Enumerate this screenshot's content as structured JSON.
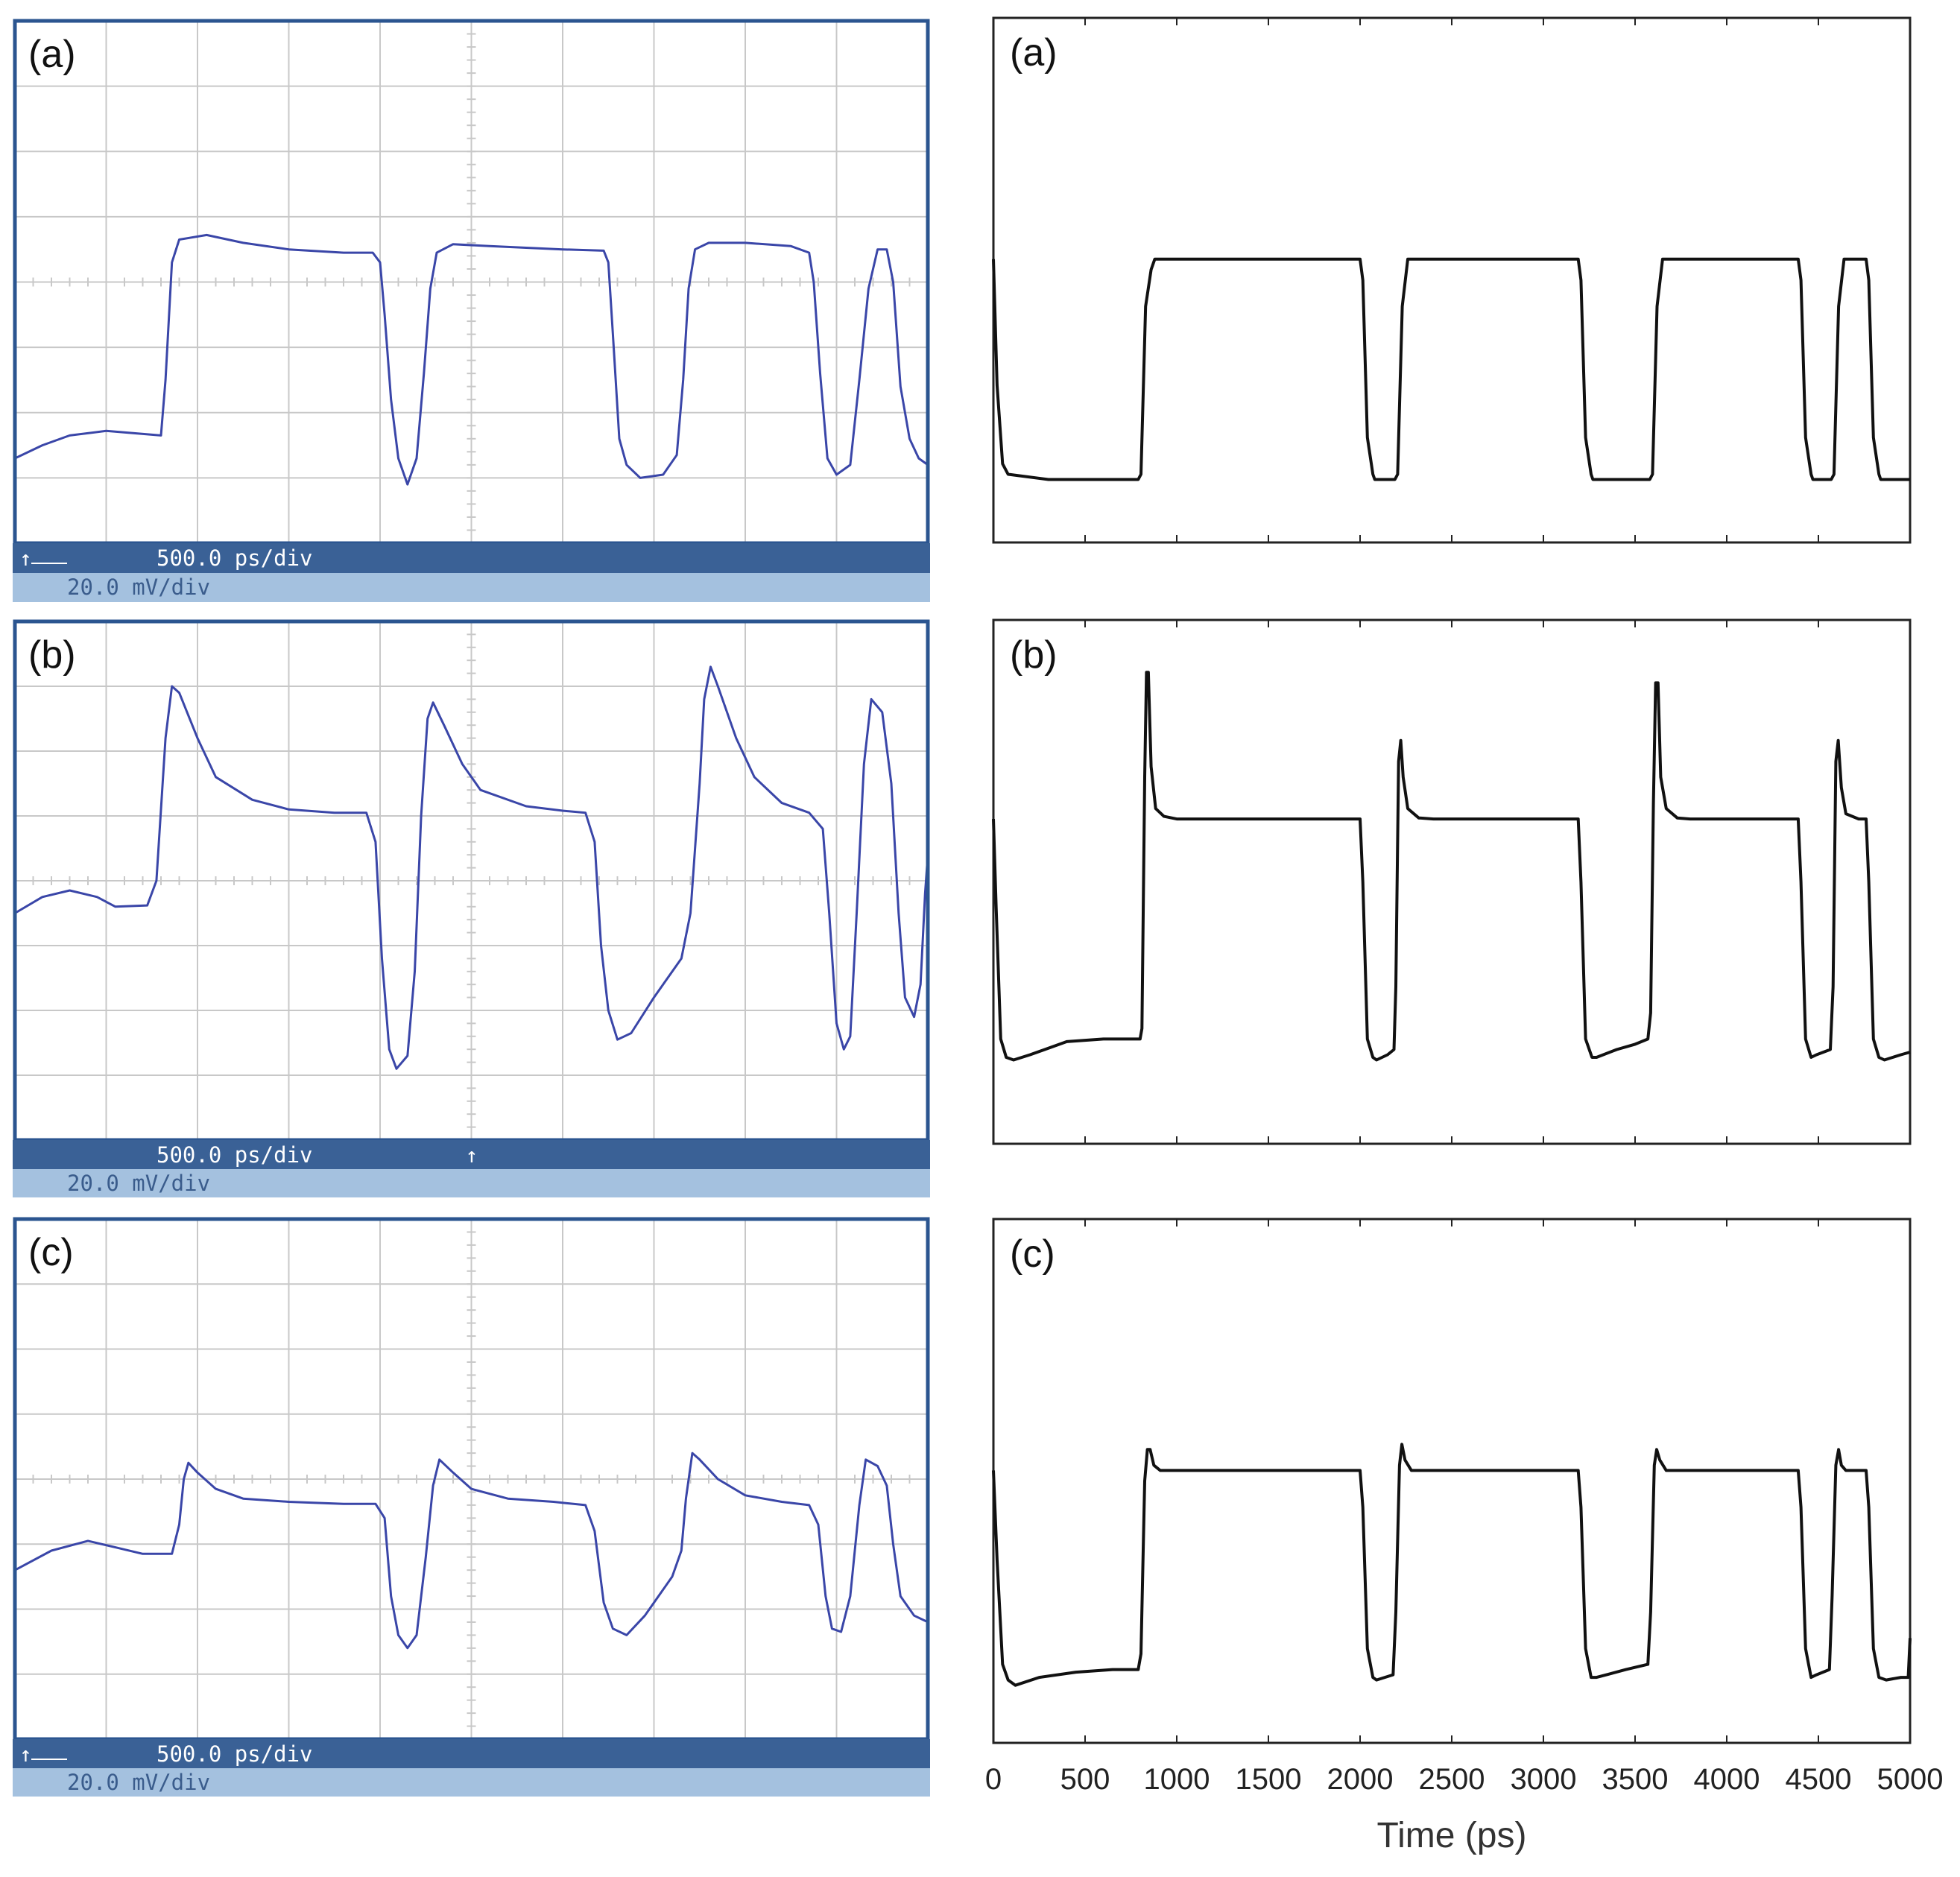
{
  "colors": {
    "scope_trace": "#3a46a8",
    "scope_border": "#2b5590",
    "scope_grid": "#c8c8c8",
    "scope_bar_dark": "#3a6196",
    "scope_bar_light": "#a4c1df",
    "scope_bar_text_dark": "#ffffff",
    "scope_bar_text_light": "#3a5c8c",
    "sim_trace": "#111111",
    "frame": "#222222"
  },
  "chart_data": [
    {
      "id": "scope-a",
      "kind": "oscilloscope",
      "type": "line",
      "label": "(a)",
      "time_scale_label": "500.0 ps/div",
      "volt_scale_label": "20.0 mV/div",
      "marker_left": "↑",
      "marker_center": "",
      "x_divisions": 10,
      "y_divisions": 8,
      "xlim": [
        0,
        10
      ],
      "ylim": [
        0,
        8
      ],
      "grid": true,
      "points": [
        [
          0,
          1.3
        ],
        [
          0.3,
          1.5
        ],
        [
          0.6,
          1.65
        ],
        [
          1.0,
          1.72
        ],
        [
          1.6,
          1.65
        ],
        [
          1.65,
          2.5
        ],
        [
          1.72,
          4.3
        ],
        [
          1.8,
          4.65
        ],
        [
          2.1,
          4.72
        ],
        [
          2.5,
          4.6
        ],
        [
          3.0,
          4.5
        ],
        [
          3.6,
          4.45
        ],
        [
          3.92,
          4.45
        ],
        [
          4.0,
          4.3
        ],
        [
          4.05,
          3.5
        ],
        [
          4.12,
          2.2
        ],
        [
          4.2,
          1.3
        ],
        [
          4.3,
          0.9
        ],
        [
          4.4,
          1.3
        ],
        [
          4.48,
          2.6
        ],
        [
          4.55,
          3.9
        ],
        [
          4.62,
          4.45
        ],
        [
          4.8,
          4.58
        ],
        [
          5.2,
          4.55
        ],
        [
          6.0,
          4.5
        ],
        [
          6.45,
          4.48
        ],
        [
          6.5,
          4.3
        ],
        [
          6.55,
          3.2
        ],
        [
          6.62,
          1.6
        ],
        [
          6.7,
          1.2
        ],
        [
          6.85,
          1.0
        ],
        [
          7.1,
          1.05
        ],
        [
          7.25,
          1.35
        ],
        [
          7.32,
          2.5
        ],
        [
          7.38,
          3.9
        ],
        [
          7.45,
          4.5
        ],
        [
          7.6,
          4.6
        ],
        [
          8.0,
          4.6
        ],
        [
          8.5,
          4.55
        ],
        [
          8.7,
          4.45
        ],
        [
          8.75,
          4.0
        ],
        [
          8.82,
          2.6
        ],
        [
          8.9,
          1.3
        ],
        [
          9.0,
          1.05
        ],
        [
          9.15,
          1.2
        ],
        [
          9.25,
          2.5
        ],
        [
          9.35,
          3.9
        ],
        [
          9.45,
          4.5
        ],
        [
          9.55,
          4.5
        ],
        [
          9.62,
          4.0
        ],
        [
          9.7,
          2.4
        ],
        [
          9.8,
          1.6
        ],
        [
          9.9,
          1.3
        ],
        [
          10.0,
          1.2
        ]
      ]
    },
    {
      "id": "scope-b",
      "kind": "oscilloscope",
      "type": "line",
      "label": "(b)",
      "time_scale_label": "500.0 ps/div",
      "volt_scale_label": "20.0 mV/div",
      "marker_left": "",
      "marker_center": "↑",
      "x_divisions": 10,
      "y_divisions": 8,
      "xlim": [
        0,
        10
      ],
      "ylim": [
        0,
        8
      ],
      "grid": true,
      "points": [
        [
          0,
          3.5
        ],
        [
          0.3,
          3.75
        ],
        [
          0.6,
          3.85
        ],
        [
          0.9,
          3.75
        ],
        [
          1.1,
          3.6
        ],
        [
          1.45,
          3.62
        ],
        [
          1.55,
          4.0
        ],
        [
          1.65,
          6.2
        ],
        [
          1.72,
          7.0
        ],
        [
          1.8,
          6.9
        ],
        [
          2.0,
          6.2
        ],
        [
          2.2,
          5.6
        ],
        [
          2.6,
          5.25
        ],
        [
          3.0,
          5.1
        ],
        [
          3.5,
          5.05
        ],
        [
          3.85,
          5.05
        ],
        [
          3.95,
          4.6
        ],
        [
          4.02,
          2.8
        ],
        [
          4.1,
          1.4
        ],
        [
          4.18,
          1.1
        ],
        [
          4.3,
          1.3
        ],
        [
          4.38,
          2.6
        ],
        [
          4.45,
          5.0
        ],
        [
          4.52,
          6.5
        ],
        [
          4.58,
          6.75
        ],
        [
          4.7,
          6.4
        ],
        [
          4.9,
          5.8
        ],
        [
          5.1,
          5.4
        ],
        [
          5.6,
          5.15
        ],
        [
          6.0,
          5.08
        ],
        [
          6.25,
          5.05
        ],
        [
          6.35,
          4.6
        ],
        [
          6.42,
          3.0
        ],
        [
          6.5,
          2.0
        ],
        [
          6.6,
          1.55
        ],
        [
          6.75,
          1.65
        ],
        [
          7.0,
          2.2
        ],
        [
          7.3,
          2.8
        ],
        [
          7.4,
          3.5
        ],
        [
          7.5,
          5.5
        ],
        [
          7.55,
          6.8
        ],
        [
          7.62,
          7.3
        ],
        [
          7.7,
          7.0
        ],
        [
          7.9,
          6.2
        ],
        [
          8.1,
          5.6
        ],
        [
          8.4,
          5.2
        ],
        [
          8.7,
          5.05
        ],
        [
          8.85,
          4.8
        ],
        [
          8.92,
          3.5
        ],
        [
          9.0,
          1.8
        ],
        [
          9.08,
          1.4
        ],
        [
          9.15,
          1.6
        ],
        [
          9.22,
          3.5
        ],
        [
          9.3,
          5.8
        ],
        [
          9.38,
          6.8
        ],
        [
          9.5,
          6.6
        ],
        [
          9.6,
          5.5
        ],
        [
          9.68,
          3.5
        ],
        [
          9.75,
          2.2
        ],
        [
          9.85,
          1.9
        ],
        [
          9.92,
          2.4
        ],
        [
          9.97,
          3.8
        ],
        [
          10.0,
          4.4
        ]
      ]
    },
    {
      "id": "scope-c",
      "kind": "oscilloscope",
      "type": "line",
      "label": "(c)",
      "time_scale_label": "500.0 ps/div",
      "volt_scale_label": "20.0 mV/div",
      "marker_left": "↑",
      "marker_center": "",
      "x_divisions": 10,
      "y_divisions": 8,
      "xlim": [
        0,
        10
      ],
      "ylim": [
        0,
        8
      ],
      "grid": true,
      "points": [
        [
          0,
          2.6
        ],
        [
          0.4,
          2.9
        ],
        [
          0.8,
          3.05
        ],
        [
          1.1,
          2.95
        ],
        [
          1.4,
          2.85
        ],
        [
          1.72,
          2.85
        ],
        [
          1.8,
          3.3
        ],
        [
          1.85,
          4.0
        ],
        [
          1.9,
          4.25
        ],
        [
          2.0,
          4.1
        ],
        [
          2.2,
          3.85
        ],
        [
          2.5,
          3.7
        ],
        [
          3.0,
          3.65
        ],
        [
          3.6,
          3.62
        ],
        [
          3.95,
          3.62
        ],
        [
          4.05,
          3.4
        ],
        [
          4.12,
          2.2
        ],
        [
          4.2,
          1.6
        ],
        [
          4.3,
          1.4
        ],
        [
          4.4,
          1.6
        ],
        [
          4.5,
          2.8
        ],
        [
          4.58,
          3.9
        ],
        [
          4.65,
          4.3
        ],
        [
          4.8,
          4.1
        ],
        [
          5.0,
          3.85
        ],
        [
          5.4,
          3.7
        ],
        [
          5.9,
          3.65
        ],
        [
          6.25,
          3.6
        ],
        [
          6.35,
          3.2
        ],
        [
          6.45,
          2.1
        ],
        [
          6.55,
          1.7
        ],
        [
          6.7,
          1.6
        ],
        [
          6.9,
          1.9
        ],
        [
          7.2,
          2.5
        ],
        [
          7.3,
          2.9
        ],
        [
          7.35,
          3.7
        ],
        [
          7.42,
          4.4
        ],
        [
          7.5,
          4.3
        ],
        [
          7.7,
          4.0
        ],
        [
          8.0,
          3.75
        ],
        [
          8.4,
          3.65
        ],
        [
          8.7,
          3.6
        ],
        [
          8.8,
          3.3
        ],
        [
          8.88,
          2.2
        ],
        [
          8.95,
          1.7
        ],
        [
          9.05,
          1.65
        ],
        [
          9.15,
          2.2
        ],
        [
          9.25,
          3.6
        ],
        [
          9.32,
          4.3
        ],
        [
          9.45,
          4.2
        ],
        [
          9.55,
          3.9
        ],
        [
          9.62,
          3.0
        ],
        [
          9.7,
          2.2
        ],
        [
          9.85,
          1.9
        ],
        [
          10.0,
          1.8
        ]
      ]
    },
    {
      "id": "sim-a",
      "kind": "simulation",
      "type": "line",
      "label": "(a)",
      "xlim": [
        0,
        5000
      ],
      "ylim": [
        0,
        1
      ],
      "points": [
        [
          0,
          0.54
        ],
        [
          20,
          0.3
        ],
        [
          50,
          0.15
        ],
        [
          80,
          0.13
        ],
        [
          300,
          0.12
        ],
        [
          790,
          0.12
        ],
        [
          805,
          0.13
        ],
        [
          830,
          0.45
        ],
        [
          860,
          0.52
        ],
        [
          880,
          0.54
        ],
        [
          2000,
          0.54
        ],
        [
          2015,
          0.5
        ],
        [
          2040,
          0.2
        ],
        [
          2070,
          0.13
        ],
        [
          2080,
          0.12
        ],
        [
          2190,
          0.12
        ],
        [
          2205,
          0.13
        ],
        [
          2230,
          0.45
        ],
        [
          2260,
          0.54
        ],
        [
          3190,
          0.54
        ],
        [
          3205,
          0.5
        ],
        [
          3230,
          0.2
        ],
        [
          3260,
          0.13
        ],
        [
          3270,
          0.12
        ],
        [
          3580,
          0.12
        ],
        [
          3595,
          0.13
        ],
        [
          3620,
          0.45
        ],
        [
          3650,
          0.54
        ],
        [
          4390,
          0.54
        ],
        [
          4405,
          0.5
        ],
        [
          4430,
          0.2
        ],
        [
          4460,
          0.13
        ],
        [
          4470,
          0.12
        ],
        [
          4570,
          0.12
        ],
        [
          4585,
          0.13
        ],
        [
          4610,
          0.45
        ],
        [
          4640,
          0.54
        ],
        [
          4760,
          0.54
        ],
        [
          4775,
          0.5
        ],
        [
          4800,
          0.2
        ],
        [
          4830,
          0.13
        ],
        [
          4840,
          0.12
        ],
        [
          5000,
          0.12
        ]
      ]
    },
    {
      "id": "sim-b",
      "kind": "simulation",
      "type": "line",
      "label": "(b)",
      "xlim": [
        0,
        5000
      ],
      "ylim": [
        0,
        1
      ],
      "points": [
        [
          0,
          0.62
        ],
        [
          15,
          0.45
        ],
        [
          40,
          0.2
        ],
        [
          70,
          0.165
        ],
        [
          110,
          0.16
        ],
        [
          200,
          0.17
        ],
        [
          400,
          0.195
        ],
        [
          600,
          0.2
        ],
        [
          800,
          0.2
        ],
        [
          810,
          0.22
        ],
        [
          825,
          0.7
        ],
        [
          835,
          0.9
        ],
        [
          845,
          0.9
        ],
        [
          860,
          0.72
        ],
        [
          885,
          0.64
        ],
        [
          930,
          0.625
        ],
        [
          1000,
          0.62
        ],
        [
          2000,
          0.62
        ],
        [
          2015,
          0.5
        ],
        [
          2040,
          0.2
        ],
        [
          2070,
          0.165
        ],
        [
          2090,
          0.16
        ],
        [
          2150,
          0.17
        ],
        [
          2185,
          0.18
        ],
        [
          2195,
          0.3
        ],
        [
          2210,
          0.73
        ],
        [
          2222,
          0.77
        ],
        [
          2235,
          0.7
        ],
        [
          2260,
          0.64
        ],
        [
          2320,
          0.622
        ],
        [
          2400,
          0.62
        ],
        [
          3190,
          0.62
        ],
        [
          3205,
          0.5
        ],
        [
          3230,
          0.2
        ],
        [
          3265,
          0.165
        ],
        [
          3290,
          0.165
        ],
        [
          3400,
          0.18
        ],
        [
          3500,
          0.19
        ],
        [
          3570,
          0.2
        ],
        [
          3585,
          0.25
        ],
        [
          3600,
          0.65
        ],
        [
          3612,
          0.88
        ],
        [
          3625,
          0.88
        ],
        [
          3640,
          0.7
        ],
        [
          3670,
          0.64
        ],
        [
          3730,
          0.622
        ],
        [
          3800,
          0.62
        ],
        [
          4390,
          0.62
        ],
        [
          4405,
          0.5
        ],
        [
          4430,
          0.2
        ],
        [
          4460,
          0.165
        ],
        [
          4490,
          0.17
        ],
        [
          4565,
          0.18
        ],
        [
          4580,
          0.3
        ],
        [
          4595,
          0.73
        ],
        [
          4608,
          0.77
        ],
        [
          4625,
          0.68
        ],
        [
          4650,
          0.63
        ],
        [
          4720,
          0.62
        ],
        [
          4760,
          0.62
        ],
        [
          4775,
          0.5
        ],
        [
          4800,
          0.2
        ],
        [
          4830,
          0.165
        ],
        [
          4860,
          0.16
        ],
        [
          4950,
          0.17
        ],
        [
          5000,
          0.175
        ]
      ]
    },
    {
      "id": "sim-c",
      "kind": "simulation",
      "type": "line",
      "label": "(c)",
      "xlim": [
        0,
        5000
      ],
      "ylim": [
        0,
        1
      ],
      "xticks": [
        0,
        500,
        1000,
        1500,
        2000,
        2500,
        3000,
        3500,
        4000,
        4500,
        5000
      ],
      "xlabel": "Time (ps)",
      "points": [
        [
          0,
          0.52
        ],
        [
          20,
          0.35
        ],
        [
          50,
          0.15
        ],
        [
          80,
          0.12
        ],
        [
          120,
          0.11
        ],
        [
          250,
          0.125
        ],
        [
          450,
          0.135
        ],
        [
          650,
          0.14
        ],
        [
          790,
          0.14
        ],
        [
          805,
          0.17
        ],
        [
          825,
          0.5
        ],
        [
          840,
          0.56
        ],
        [
          855,
          0.56
        ],
        [
          875,
          0.53
        ],
        [
          910,
          0.52
        ],
        [
          1000,
          0.52
        ],
        [
          2000,
          0.52
        ],
        [
          2015,
          0.45
        ],
        [
          2040,
          0.18
        ],
        [
          2070,
          0.125
        ],
        [
          2090,
          0.12
        ],
        [
          2180,
          0.13
        ],
        [
          2195,
          0.25
        ],
        [
          2215,
          0.53
        ],
        [
          2228,
          0.57
        ],
        [
          2245,
          0.54
        ],
        [
          2280,
          0.52
        ],
        [
          3190,
          0.52
        ],
        [
          3205,
          0.45
        ],
        [
          3230,
          0.18
        ],
        [
          3260,
          0.125
        ],
        [
          3290,
          0.125
        ],
        [
          3450,
          0.14
        ],
        [
          3570,
          0.15
        ],
        [
          3585,
          0.25
        ],
        [
          3605,
          0.53
        ],
        [
          3618,
          0.56
        ],
        [
          3635,
          0.54
        ],
        [
          3670,
          0.52
        ],
        [
          4390,
          0.52
        ],
        [
          4405,
          0.45
        ],
        [
          4430,
          0.18
        ],
        [
          4460,
          0.125
        ],
        [
          4490,
          0.13
        ],
        [
          4560,
          0.14
        ],
        [
          4575,
          0.28
        ],
        [
          4595,
          0.53
        ],
        [
          4610,
          0.56
        ],
        [
          4625,
          0.53
        ],
        [
          4650,
          0.52
        ],
        [
          4760,
          0.52
        ],
        [
          4775,
          0.45
        ],
        [
          4800,
          0.18
        ],
        [
          4830,
          0.125
        ],
        [
          4870,
          0.12
        ],
        [
          4950,
          0.125
        ],
        [
          4990,
          0.125
        ],
        [
          5000,
          0.2
        ]
      ]
    }
  ]
}
